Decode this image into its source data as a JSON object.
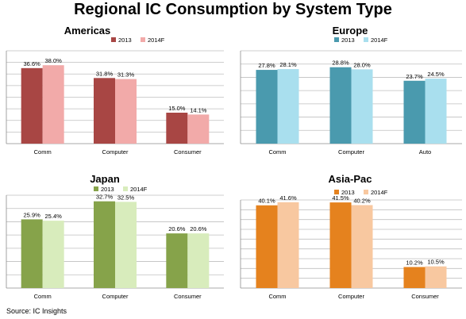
{
  "title": "Regional IC Consumption by System Type",
  "source": "Source:  IC Insights",
  "chart_data": [
    {
      "type": "bar",
      "title": "Americas",
      "categories": [
        "Comm",
        "Computer",
        "Consumer"
      ],
      "series": [
        {
          "name": "2013",
          "values": [
            36.6,
            31.8,
            15.0
          ],
          "labels": [
            "36.6%",
            "31.8%",
            "15.0%"
          ],
          "color": "#a84644"
        },
        {
          "name": "2014F",
          "values": [
            38.0,
            31.3,
            14.1
          ],
          "labels": [
            "38.0%",
            "31.3%",
            "14.1%"
          ],
          "color": "#f2aaa9"
        }
      ],
      "ylim": [
        0,
        45
      ],
      "grid": true,
      "legend": "top-right"
    },
    {
      "type": "bar",
      "title": "Europe",
      "categories": [
        "Comm",
        "Computer",
        "Auto"
      ],
      "series": [
        {
          "name": "2013",
          "values": [
            27.8,
            28.8,
            23.7
          ],
          "labels": [
            "27.8%",
            "28.8%",
            "23.7%"
          ],
          "color": "#4a9aae"
        },
        {
          "name": "2014F",
          "values": [
            28.1,
            28.0,
            24.5
          ],
          "labels": [
            "28.1%",
            "28.0%",
            "24.5%"
          ],
          "color": "#a9dfee"
        }
      ],
      "ylim": [
        0,
        35
      ],
      "grid": true,
      "legend": "top-center"
    },
    {
      "type": "bar",
      "title": "Japan",
      "categories": [
        "Comm",
        "Computer",
        "Consumer"
      ],
      "series": [
        {
          "name": "2013",
          "values": [
            25.9,
            32.7,
            20.6
          ],
          "labels": [
            "25.9%",
            "32.7%",
            "20.6%"
          ],
          "color": "#86a34a"
        },
        {
          "name": "2014F",
          "values": [
            25.4,
            32.5,
            20.6
          ],
          "labels": [
            "25.4%",
            "32.5%",
            "20.6%"
          ],
          "color": "#d8ecbc"
        }
      ],
      "ylim": [
        0,
        35
      ],
      "grid": true,
      "legend": "top-center"
    },
    {
      "type": "bar",
      "title": "Asia-Pac",
      "categories": [
        "Comm",
        "Computer",
        "Consumer"
      ],
      "series": [
        {
          "name": "2013",
          "values": [
            40.1,
            41.5,
            10.2
          ],
          "labels": [
            "40.1%",
            "41.5%",
            "10.2%"
          ],
          "color": "#e5821e"
        },
        {
          "name": "2014F",
          "values": [
            41.6,
            40.2,
            10.5
          ],
          "labels": [
            "41.6%",
            "40.2%",
            "10.5%"
          ],
          "color": "#f8c8a0"
        }
      ],
      "ylim": [
        0,
        45
      ],
      "grid": true,
      "legend": "top-center"
    }
  ]
}
